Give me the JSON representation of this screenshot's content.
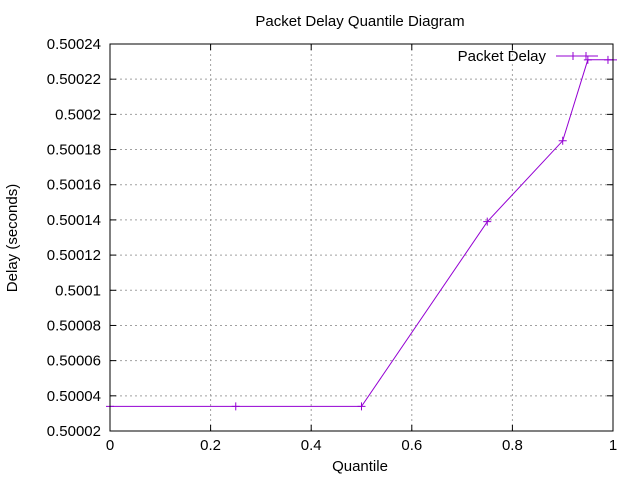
{
  "chart_data": {
    "type": "line",
    "title": "Packet Delay Quantile Diagram",
    "xlabel": "Quantile",
    "ylabel": "Delay (seconds)",
    "xlim": [
      0,
      1
    ],
    "ylim": [
      0.50002,
      0.50024
    ],
    "x_ticks": [
      "0",
      "0.2",
      "0.4",
      "0.6",
      "0.8",
      "1"
    ],
    "y_ticks": [
      "0.50002",
      "0.50004",
      "0.50006",
      "0.50008",
      "0.5001",
      "0.50012",
      "0.50014",
      "0.50016",
      "0.50018",
      "0.5002",
      "0.50022",
      "0.50024"
    ],
    "grid": true,
    "legend_position": "top-right",
    "series": [
      {
        "name": "Packet Delay",
        "color": "#9400d3",
        "marker": "plus",
        "x": [
          0,
          0.25,
          0.5,
          0.75,
          0.9,
          0.95,
          0.99,
          1.0
        ],
        "y": [
          0.500034,
          0.500034,
          0.500034,
          0.500139,
          0.500185,
          0.500231,
          0.500231,
          0.500231
        ]
      }
    ]
  }
}
